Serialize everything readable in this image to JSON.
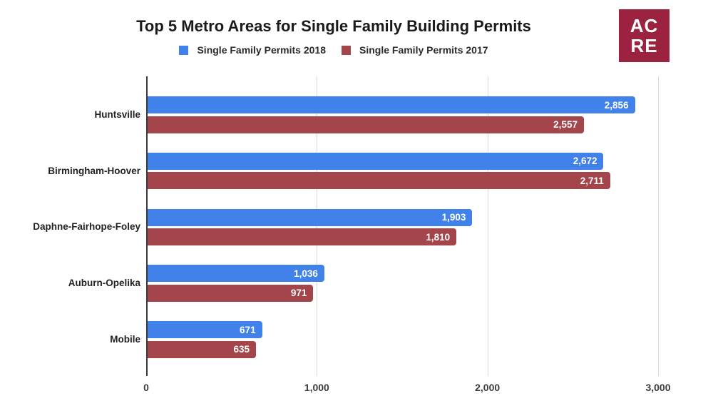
{
  "header": {
    "title": "Top 5 Metro Areas for Single Family Building Permits",
    "logo": {
      "line1": "AC",
      "line2": "RE",
      "bg_color": "#9C2340",
      "text_color": "#FFFFFF"
    }
  },
  "legend": [
    {
      "label": "Single Family Permits 2018",
      "color": "#4182EA"
    },
    {
      "label": "Single Family Permits 2017",
      "color": "#A4454B"
    }
  ],
  "chart_data": {
    "type": "bar",
    "orientation": "horizontal",
    "title": "Top 5 Metro Areas for Single Family Building Permits",
    "categories": [
      "Huntsville",
      "Birmingham-Hoover",
      "Daphne-Fairhope-Foley",
      "Auburn-Opelika",
      "Mobile"
    ],
    "series": [
      {
        "name": "Single Family Permits 2018",
        "color": "#4182EA",
        "values": [
          2856,
          2672,
          1903,
          1036,
          671
        ],
        "labels": [
          "2,856",
          "2,672",
          "1,903",
          "1,036",
          "671"
        ]
      },
      {
        "name": "Single Family Permits 2017",
        "color": "#A4454B",
        "values": [
          2557,
          2711,
          1810,
          971,
          635
        ],
        "labels": [
          "2,557",
          "2,711",
          "1,810",
          "971",
          "635"
        ]
      }
    ],
    "x_axis": {
      "ticks": [
        0,
        1000,
        2000,
        3000
      ],
      "tick_labels": [
        "0",
        "1,000",
        "2,000",
        "3,000"
      ],
      "min": 0,
      "max": 3000
    },
    "grid": true,
    "legend_position": "top",
    "value_labels": "inside-end",
    "colors": {
      "grid": "#d9d9d9",
      "axis": "#3a3a3a",
      "background": "#ffffff"
    }
  }
}
